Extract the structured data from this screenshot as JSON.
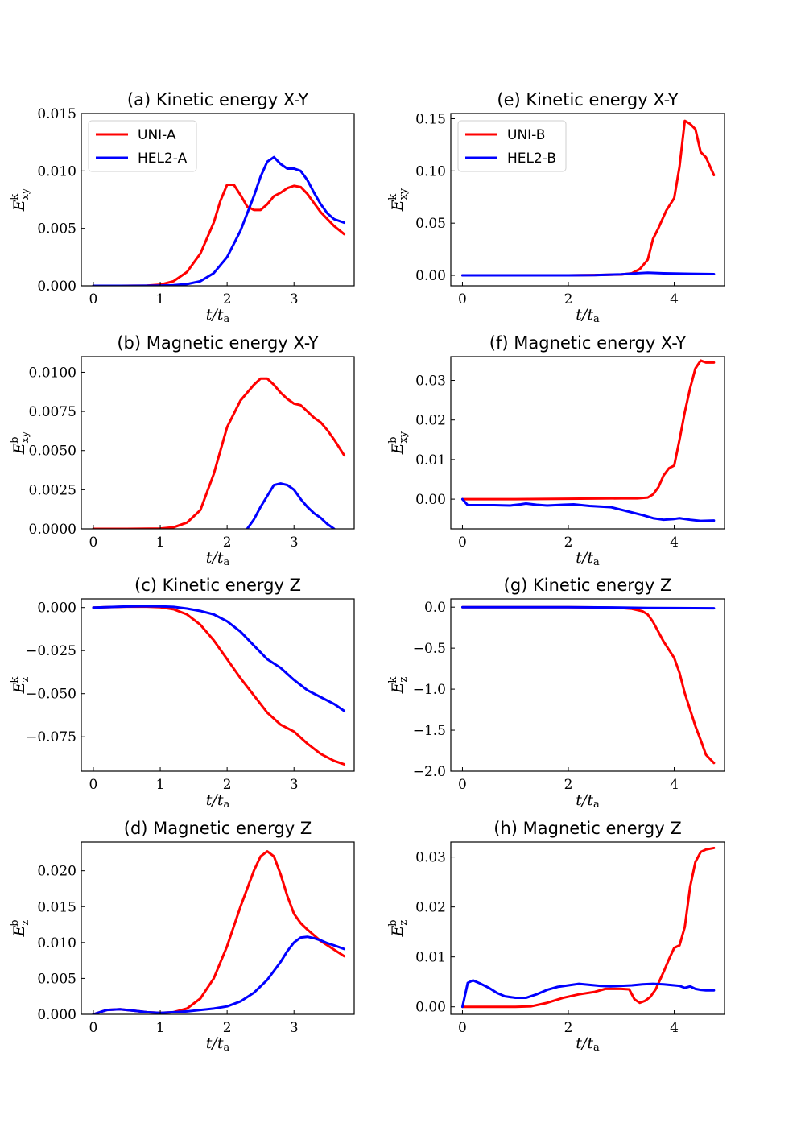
{
  "chart_data": [
    {
      "id": "a",
      "type": "line",
      "title": "(a) Kinetic energy X-Y",
      "xlabel": "t/t_a",
      "ylabel": "E_xy^k",
      "xlim": [
        -0.18,
        3.9
      ],
      "ylim": [
        0,
        0.015
      ],
      "xticks": [
        0,
        1,
        2,
        3
      ],
      "xtick_labels": [
        "0",
        "1",
        "2",
        "3"
      ],
      "yticks": [
        0,
        0.005,
        0.01,
        0.015
      ],
      "ytick_labels": [
        "0.000",
        "0.005",
        "0.010",
        "0.015"
      ],
      "legend": "top-left",
      "series": [
        {
          "name": "UNI-A",
          "color": "#ff0000",
          "x": [
            0,
            0.4,
            0.8,
            1.0,
            1.2,
            1.4,
            1.6,
            1.8,
            1.9,
            2.0,
            2.1,
            2.2,
            2.3,
            2.4,
            2.5,
            2.6,
            2.7,
            2.8,
            2.9,
            3.0,
            3.1,
            3.2,
            3.3,
            3.4,
            3.5,
            3.6,
            3.75
          ],
          "y": [
            0,
            0,
            2e-05,
            0.0001,
            0.0004,
            0.0012,
            0.0028,
            0.0055,
            0.0074,
            0.0088,
            0.0088,
            0.0079,
            0.0069,
            0.0066,
            0.0066,
            0.0071,
            0.0078,
            0.0081,
            0.0085,
            0.0087,
            0.0086,
            0.008,
            0.0072,
            0.0064,
            0.0058,
            0.0052,
            0.0045
          ]
        },
        {
          "name": "HEL2-A",
          "color": "#0000ff",
          "x": [
            0,
            0.5,
            1.0,
            1.2,
            1.4,
            1.6,
            1.8,
            2.0,
            2.2,
            2.4,
            2.5,
            2.6,
            2.7,
            2.8,
            2.9,
            3.0,
            3.1,
            3.2,
            3.3,
            3.4,
            3.5,
            3.6,
            3.75
          ],
          "y": [
            0,
            0,
            2e-05,
            5e-05,
            0.00015,
            0.0004,
            0.0011,
            0.0025,
            0.0048,
            0.0078,
            0.0095,
            0.0108,
            0.0112,
            0.0106,
            0.0102,
            0.0102,
            0.01,
            0.0092,
            0.0081,
            0.0071,
            0.0063,
            0.0058,
            0.0055
          ]
        }
      ]
    },
    {
      "id": "b",
      "type": "line",
      "title": "(b) Magnetic energy X-Y",
      "xlabel": "t/t_a",
      "ylabel": "E_xy^b",
      "xlim": [
        -0.18,
        3.9
      ],
      "ylim": [
        0,
        0.011
      ],
      "xticks": [
        0,
        1,
        2,
        3
      ],
      "xtick_labels": [
        "0",
        "1",
        "2",
        "3"
      ],
      "yticks": [
        0,
        0.0025,
        0.005,
        0.0075,
        0.01
      ],
      "ytick_labels": [
        "0.0000",
        "0.0025",
        "0.0050",
        "0.0075",
        "0.0100"
      ],
      "series": [
        {
          "color": "#ff0000",
          "x": [
            0,
            0.5,
            1.0,
            1.2,
            1.4,
            1.6,
            1.8,
            2.0,
            2.2,
            2.4,
            2.5,
            2.6,
            2.7,
            2.8,
            2.9,
            3.0,
            3.1,
            3.2,
            3.3,
            3.4,
            3.5,
            3.6,
            3.75
          ],
          "y": [
            0,
            0,
            2e-05,
            0.0001,
            0.0004,
            0.0012,
            0.0035,
            0.0065,
            0.0082,
            0.0092,
            0.0096,
            0.0096,
            0.0092,
            0.0087,
            0.0083,
            0.008,
            0.0079,
            0.0075,
            0.0071,
            0.0068,
            0.0063,
            0.0057,
            0.0047
          ]
        },
        {
          "color": "#0000ff",
          "x": [
            2.3,
            2.4,
            2.5,
            2.6,
            2.7,
            2.8,
            2.9,
            3.0,
            3.1,
            3.2,
            3.3,
            3.4,
            3.5,
            3.6
          ],
          "y": [
            0,
            0.0006,
            0.0014,
            0.0021,
            0.0028,
            0.0029,
            0.0028,
            0.0025,
            0.0019,
            0.0014,
            0.001,
            0.0007,
            0.0003,
            0
          ]
        }
      ]
    },
    {
      "id": "c",
      "type": "line",
      "title": "(c) Kinetic energy Z",
      "xlabel": "t/t_a",
      "ylabel": "E_z^k",
      "xlim": [
        -0.18,
        3.9
      ],
      "ylim": [
        -0.095,
        0.005
      ],
      "xticks": [
        0,
        1,
        2,
        3
      ],
      "xtick_labels": [
        "0",
        "1",
        "2",
        "3"
      ],
      "yticks": [
        0,
        -0.025,
        -0.05,
        -0.075
      ],
      "ytick_labels": [
        "0.000",
        "−0.025",
        "−0.050",
        "−0.075"
      ],
      "series": [
        {
          "color": "#ff0000",
          "x": [
            0,
            0.5,
            0.8,
            1.0,
            1.2,
            1.4,
            1.6,
            1.8,
            2.0,
            2.2,
            2.4,
            2.6,
            2.8,
            3.0,
            3.2,
            3.4,
            3.6,
            3.75
          ],
          "y": [
            0,
            0.0005,
            0.0005,
            0.0002,
            -0.001,
            -0.004,
            -0.01,
            -0.019,
            -0.03,
            -0.041,
            -0.051,
            -0.061,
            -0.068,
            -0.072,
            -0.079,
            -0.085,
            -0.089,
            -0.091
          ]
        },
        {
          "color": "#0000ff",
          "x": [
            0,
            0.5,
            0.8,
            1.0,
            1.2,
            1.4,
            1.6,
            1.8,
            2.0,
            2.2,
            2.4,
            2.6,
            2.8,
            3.0,
            3.2,
            3.4,
            3.6,
            3.75
          ],
          "y": [
            0,
            0.0006,
            0.0008,
            0.0007,
            0.0004,
            -0.0006,
            -0.002,
            -0.004,
            -0.008,
            -0.014,
            -0.022,
            -0.03,
            -0.035,
            -0.042,
            -0.048,
            -0.052,
            -0.056,
            -0.06
          ]
        }
      ]
    },
    {
      "id": "d",
      "type": "line",
      "title": "(d) Magnetic energy Z",
      "xlabel": "t/t_a",
      "ylabel": "E_z^b",
      "xlim": [
        -0.18,
        3.9
      ],
      "ylim": [
        0,
        0.024
      ],
      "xticks": [
        0,
        1,
        2,
        3
      ],
      "xtick_labels": [
        "0",
        "1",
        "2",
        "3"
      ],
      "yticks": [
        0,
        0.005,
        0.01,
        0.015,
        0.02
      ],
      "ytick_labels": [
        "0.000",
        "0.005",
        "0.010",
        "0.015",
        "0.020"
      ],
      "series": [
        {
          "color": "#ff0000",
          "x": [
            0,
            0.2,
            0.4,
            0.6,
            0.8,
            1.0,
            1.2,
            1.4,
            1.6,
            1.8,
            2.0,
            2.2,
            2.4,
            2.5,
            2.6,
            2.7,
            2.8,
            2.9,
            3.0,
            3.1,
            3.2,
            3.3,
            3.4,
            3.5,
            3.6,
            3.75
          ],
          "y": [
            0,
            0.0006,
            0.0007,
            0.0005,
            0.0003,
            0.0002,
            0.0003,
            0.0008,
            0.0022,
            0.005,
            0.0095,
            0.015,
            0.02,
            0.022,
            0.0227,
            0.022,
            0.0195,
            0.0165,
            0.014,
            0.0127,
            0.0118,
            0.011,
            0.0102,
            0.0096,
            0.009,
            0.0081
          ]
        },
        {
          "color": "#0000ff",
          "x": [
            0,
            0.2,
            0.4,
            0.6,
            0.8,
            1.0,
            1.2,
            1.4,
            1.6,
            1.8,
            2.0,
            2.2,
            2.4,
            2.6,
            2.8,
            2.9,
            3.0,
            3.1,
            3.2,
            3.3,
            3.4,
            3.5,
            3.6,
            3.75
          ],
          "y": [
            0,
            0.0006,
            0.0007,
            0.0005,
            0.0003,
            0.0002,
            0.0003,
            0.0004,
            0.0006,
            0.0008,
            0.0011,
            0.0018,
            0.003,
            0.0048,
            0.0073,
            0.0088,
            0.01,
            0.0107,
            0.0108,
            0.0106,
            0.0103,
            0.0099,
            0.0096,
            0.0091
          ]
        }
      ]
    },
    {
      "id": "e",
      "type": "line",
      "title": "(e) Kinetic energy X-Y",
      "xlabel": "t/t_a",
      "ylabel": "E_xy^k",
      "xlim": [
        -0.22,
        4.95
      ],
      "ylim": [
        -0.01,
        0.155
      ],
      "xticks": [
        0,
        2,
        4
      ],
      "xtick_labels": [
        "0",
        "2",
        "4"
      ],
      "yticks": [
        0,
        0.05,
        0.1,
        0.15
      ],
      "ytick_labels": [
        "0.00",
        "0.05",
        "0.10",
        "0.15"
      ],
      "legend": "top-left",
      "series": [
        {
          "name": "UNI-B",
          "color": "#ff0000",
          "x": [
            0,
            1,
            2,
            2.5,
            3.0,
            3.2,
            3.35,
            3.5,
            3.6,
            3.7,
            3.85,
            4.0,
            4.1,
            4.2,
            4.3,
            4.4,
            4.5,
            4.6,
            4.75
          ],
          "y": [
            0,
            0,
            0,
            0.0003,
            0.0008,
            0.002,
            0.006,
            0.015,
            0.035,
            0.045,
            0.062,
            0.074,
            0.104,
            0.148,
            0.145,
            0.14,
            0.118,
            0.113,
            0.096
          ]
        },
        {
          "name": "HEL2-B",
          "color": "#0000ff",
          "x": [
            0,
            1,
            2,
            2.5,
            3.0,
            3.3,
            3.5,
            3.8,
            4.0,
            4.3,
            4.75
          ],
          "y": [
            0,
            0,
            0,
            0.0002,
            0.001,
            0.002,
            0.0025,
            0.002,
            0.0018,
            0.0015,
            0.0012
          ]
        }
      ]
    },
    {
      "id": "f",
      "type": "line",
      "title": "(f) Magnetic energy X-Y",
      "xlabel": "t/t_a",
      "ylabel": "E_xy^b",
      "xlim": [
        -0.22,
        4.95
      ],
      "ylim": [
        -0.0075,
        0.036
      ],
      "xticks": [
        0,
        2,
        4
      ],
      "xtick_labels": [
        "0",
        "2",
        "4"
      ],
      "yticks": [
        0,
        0.01,
        0.02,
        0.03
      ],
      "ytick_labels": [
        "0.00",
        "0.01",
        "0.02",
        "0.03"
      ],
      "series": [
        {
          "color": "#ff0000",
          "x": [
            0,
            1,
            2,
            3,
            3.3,
            3.5,
            3.6,
            3.7,
            3.8,
            3.9,
            4.0,
            4.1,
            4.2,
            4.3,
            4.4,
            4.5,
            4.6,
            4.75
          ],
          "y": [
            0,
            0,
            0.0001,
            0.0002,
            0.0002,
            0.0004,
            0.0012,
            0.003,
            0.006,
            0.0078,
            0.0085,
            0.015,
            0.022,
            0.028,
            0.033,
            0.035,
            0.0345,
            0.0345
          ]
        },
        {
          "color": "#0000ff",
          "x": [
            0,
            0.1,
            0.3,
            0.6,
            0.9,
            1.1,
            1.2,
            1.4,
            1.6,
            1.9,
            2.1,
            2.4,
            2.8,
            3.1,
            3.4,
            3.6,
            3.8,
            4.0,
            4.1,
            4.3,
            4.5,
            4.75
          ],
          "y": [
            0,
            -0.0015,
            -0.0015,
            -0.0015,
            -0.0016,
            -0.0013,
            -0.0011,
            -0.0014,
            -0.0016,
            -0.0014,
            -0.0013,
            -0.0017,
            -0.002,
            -0.003,
            -0.004,
            -0.0048,
            -0.0052,
            -0.005,
            -0.0048,
            -0.0052,
            -0.0055,
            -0.0054
          ]
        }
      ]
    },
    {
      "id": "g",
      "type": "line",
      "title": "(g) Kinetic energy Z",
      "xlabel": "t/t_a",
      "ylabel": "E_z^k",
      "xlim": [
        -0.22,
        4.95
      ],
      "ylim": [
        -2.0,
        0.1
      ],
      "xticks": [
        0,
        2,
        4
      ],
      "xtick_labels": [
        "0",
        "2",
        "4"
      ],
      "yticks": [
        0,
        -0.5,
        -1.0,
        -1.5,
        -2.0
      ],
      "ytick_labels": [
        "0.0",
        "−0.5",
        "−1.0",
        "−1.5",
        "−2.0"
      ],
      "series": [
        {
          "color": "#ff0000",
          "x": [
            0,
            1,
            2,
            2.5,
            3.0,
            3.2,
            3.4,
            3.5,
            3.6,
            3.8,
            4.0,
            4.1,
            4.2,
            4.3,
            4.4,
            4.5,
            4.6,
            4.75
          ],
          "y": [
            0,
            0,
            0,
            -0.003,
            -0.01,
            -0.02,
            -0.05,
            -0.09,
            -0.18,
            -0.42,
            -0.62,
            -0.8,
            -1.05,
            -1.25,
            -1.45,
            -1.62,
            -1.8,
            -1.9
          ]
        },
        {
          "color": "#0000ff",
          "x": [
            0,
            1,
            2,
            3,
            3.5,
            4,
            4.75
          ],
          "y": [
            0,
            0,
            0,
            -0.005,
            -0.01,
            -0.012,
            -0.014
          ]
        }
      ]
    },
    {
      "id": "h",
      "type": "line",
      "title": "(h) Magnetic energy Z",
      "xlabel": "t/t_a",
      "ylabel": "E_z^b",
      "xlim": [
        -0.22,
        4.95
      ],
      "ylim": [
        -0.0015,
        0.033
      ],
      "xticks": [
        0,
        2,
        4
      ],
      "xtick_labels": [
        "0",
        "2",
        "4"
      ],
      "yticks": [
        0,
        0.01,
        0.02,
        0.03
      ],
      "ytick_labels": [
        "0.00",
        "0.01",
        "0.02",
        "0.03"
      ],
      "series": [
        {
          "color": "#ff0000",
          "x": [
            0,
            0.1,
            0.5,
            1.0,
            1.3,
            1.6,
            1.9,
            2.2,
            2.5,
            2.7,
            3.0,
            3.15,
            3.25,
            3.35,
            3.45,
            3.55,
            3.65,
            3.8,
            3.9,
            4.0,
            4.1,
            4.2,
            4.3,
            4.4,
            4.5,
            4.6,
            4.75
          ],
          "y": [
            0,
            0,
            0,
            0,
            0.0001,
            0.0008,
            0.0018,
            0.0025,
            0.003,
            0.0036,
            0.0036,
            0.0035,
            0.0015,
            0.0008,
            0.0012,
            0.002,
            0.0035,
            0.007,
            0.0095,
            0.0118,
            0.0123,
            0.016,
            0.024,
            0.029,
            0.031,
            0.0315,
            0.0318
          ]
        },
        {
          "color": "#0000ff",
          "x": [
            0,
            0.1,
            0.2,
            0.35,
            0.5,
            0.65,
            0.8,
            1.0,
            1.2,
            1.4,
            1.6,
            1.8,
            2.0,
            2.2,
            2.4,
            2.6,
            2.8,
            3.0,
            3.2,
            3.4,
            3.6,
            3.8,
            4.0,
            4.1,
            4.2,
            4.3,
            4.4,
            4.5,
            4.6,
            4.75
          ],
          "y": [
            0,
            0.0048,
            0.0053,
            0.0046,
            0.0038,
            0.0028,
            0.0021,
            0.0018,
            0.0018,
            0.0025,
            0.0034,
            0.004,
            0.0043,
            0.0046,
            0.0044,
            0.0042,
            0.0041,
            0.0042,
            0.0043,
            0.0045,
            0.0046,
            0.0045,
            0.0043,
            0.0042,
            0.0038,
            0.0041,
            0.0036,
            0.0034,
            0.0033,
            0.0033
          ]
        }
      ]
    }
  ]
}
